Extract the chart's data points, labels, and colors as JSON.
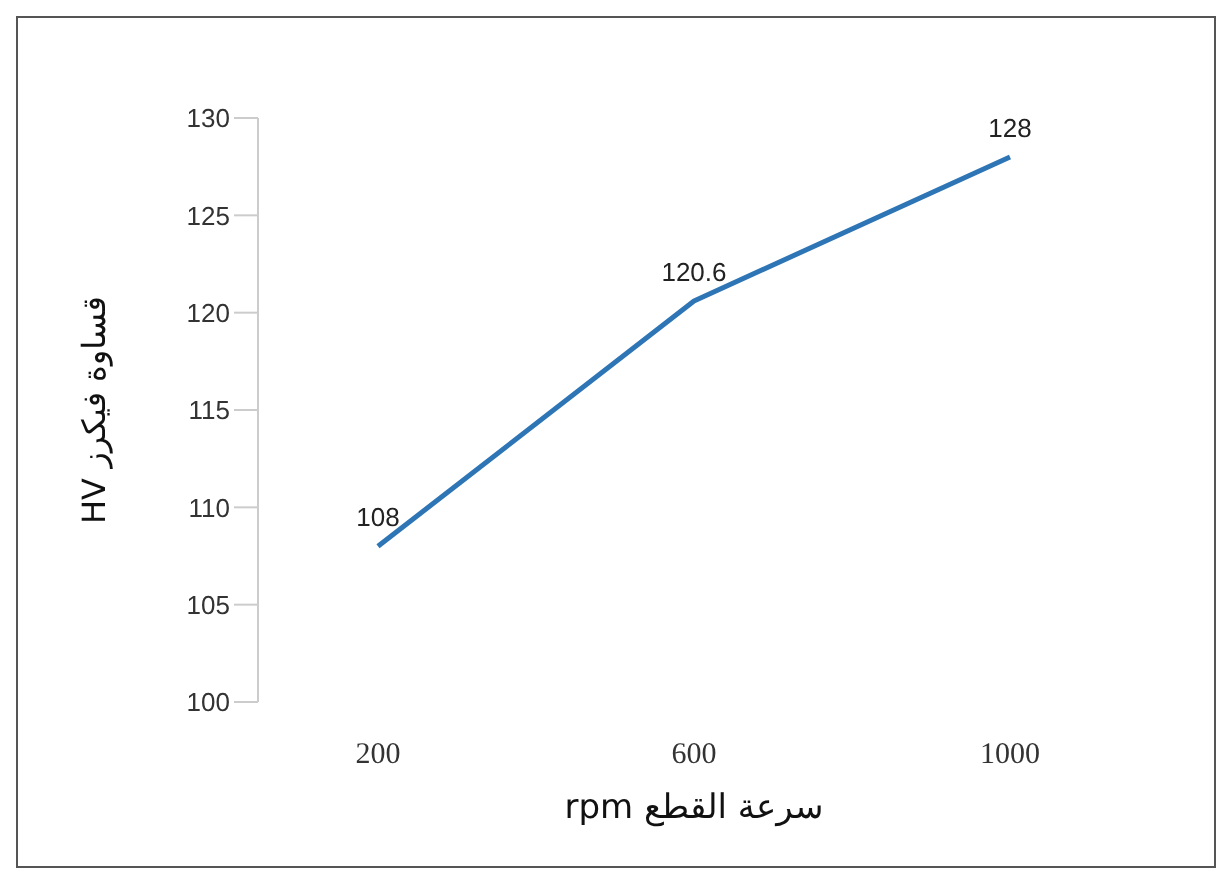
{
  "chart_data": {
    "type": "line",
    "xlabel": "سرعة القطع rpm",
    "ylabel": "قساوة فيكرز HV",
    "categories": [
      "200",
      "600",
      "1000"
    ],
    "series": [
      {
        "color": "#2e75b6",
        "values": [
          108,
          120.6,
          128
        ]
      }
    ],
    "ylim": [
      100,
      130
    ],
    "yticks": [
      100,
      105,
      110,
      115,
      120,
      125,
      130
    ],
    "data_labels": true,
    "grid": false,
    "legend": false,
    "marker": "none",
    "line_style": "solid"
  }
}
